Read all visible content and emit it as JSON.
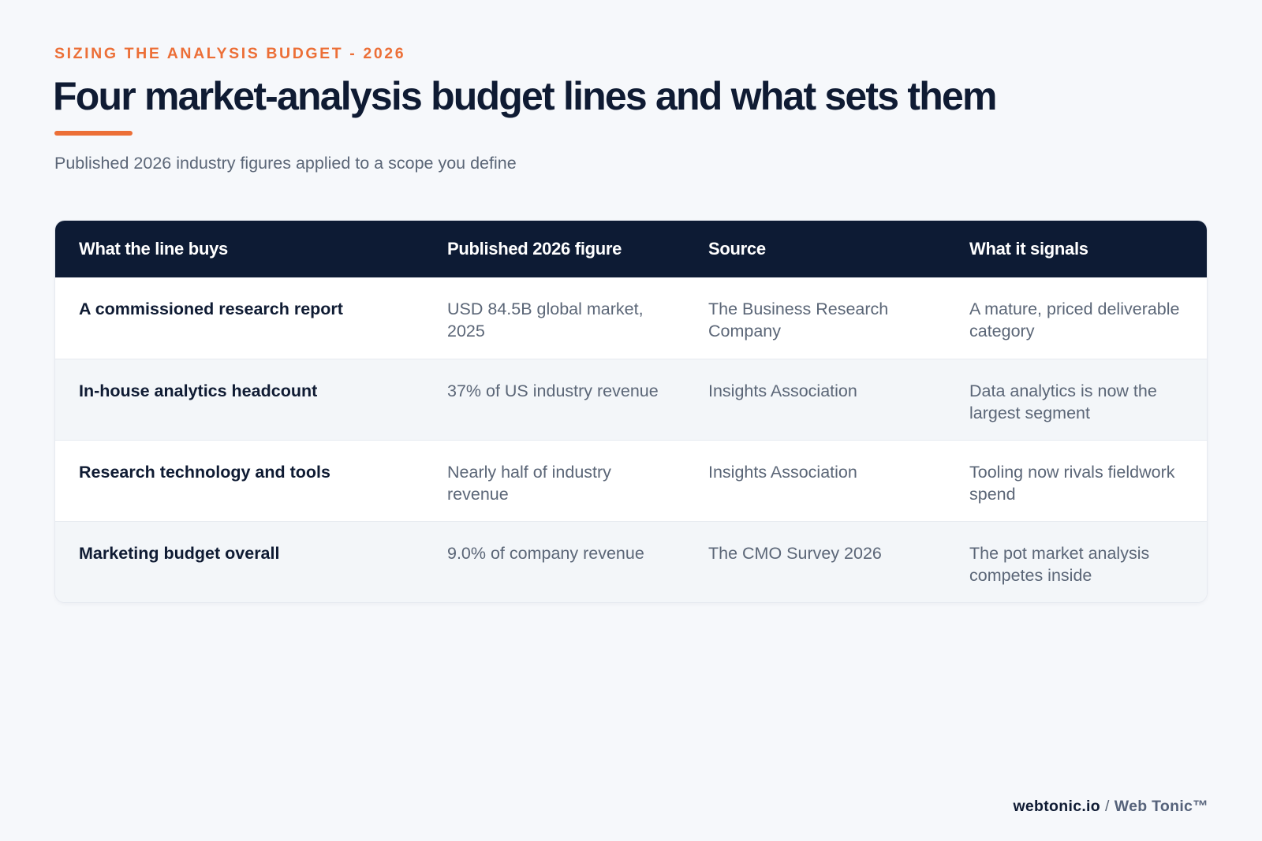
{
  "header": {
    "eyebrow": "SIZING THE ANALYSIS BUDGET - 2026",
    "title": "Four market-analysis budget lines and what sets them",
    "subtitle": "Published 2026 industry figures applied to a scope you define"
  },
  "table": {
    "columns": [
      "What the line buys",
      "Published 2026 figure",
      "Source",
      "What it signals"
    ],
    "rows": [
      [
        "A commissioned research report",
        "USD 84.5B global market, 2025",
        "The Business Research Company",
        "A mature, priced deliverable category"
      ],
      [
        "In-house analytics headcount",
        "37% of US industry revenue",
        "Insights Association",
        "Data analytics is now the largest segment"
      ],
      [
        "Research technology and tools",
        "Nearly half of industry revenue",
        "Insights Association",
        "Tooling now rivals fieldwork spend"
      ],
      [
        "Marketing budget overall",
        "9.0% of company revenue",
        "The CMO Survey 2026",
        "The pot market analysis competes inside"
      ]
    ]
  },
  "footer": {
    "domain": "webtonic.io",
    "separator": "/",
    "brand": "Web Tonic™"
  },
  "colors": {
    "accent": "#ec6f37",
    "header_bg": "#0d1b34",
    "page_bg": "#f6f8fb"
  }
}
